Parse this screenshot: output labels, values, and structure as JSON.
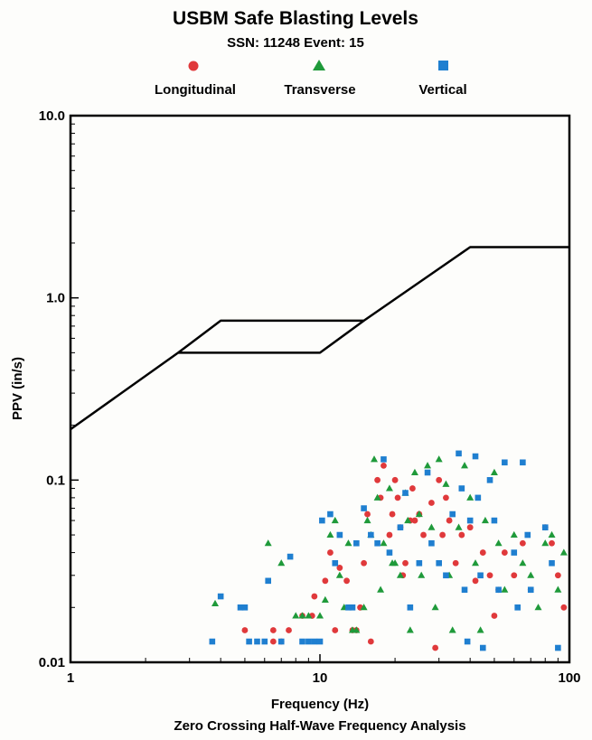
{
  "chart_data": {
    "type": "scatter",
    "title": "USBM Safe Blasting Levels",
    "subtitle": "SSN: 11248  Event: 15",
    "xlabel": "Frequency (Hz)",
    "xlabel2": "Zero Crossing Half-Wave Frequency Analysis",
    "ylabel": "PPV (in/s)",
    "x_scale": "log",
    "y_scale": "log",
    "xlim": [
      1,
      100
    ],
    "ylim": [
      0.01,
      10.0
    ],
    "x_ticks": [
      {
        "value": 1,
        "label": "1"
      },
      {
        "value": 10,
        "label": "10"
      },
      {
        "value": 100,
        "label": "100"
      }
    ],
    "y_ticks": [
      {
        "value": 0.01,
        "label": "0.01"
      },
      {
        "value": 0.1,
        "label": "0.1"
      },
      {
        "value": 1.0,
        "label": "1.0"
      },
      {
        "value": 10.0,
        "label": "10.0"
      }
    ],
    "grid": false,
    "legend_position": "top-center",
    "limit_lines": [
      {
        "points": [
          [
            1,
            0.19
          ],
          [
            2.7,
            0.5
          ],
          [
            4,
            0.75
          ],
          [
            15,
            0.75
          ],
          [
            40,
            1.9
          ],
          [
            100,
            1.9
          ]
        ]
      },
      {
        "points": [
          [
            2.7,
            0.5
          ],
          [
            10,
            0.5
          ],
          [
            15,
            0.75
          ]
        ]
      }
    ],
    "series": [
      {
        "name": "Longitudinal",
        "marker": "circle",
        "color": "#e0393b",
        "points": [
          [
            6.5,
            0.013
          ],
          [
            7,
            0.013
          ],
          [
            5,
            0.015
          ],
          [
            6.5,
            0.015
          ],
          [
            7.5,
            0.015
          ],
          [
            8.5,
            0.018
          ],
          [
            9.3,
            0.018
          ],
          [
            9.5,
            0.023
          ],
          [
            10.5,
            0.028
          ],
          [
            11,
            0.04
          ],
          [
            11.5,
            0.015
          ],
          [
            12,
            0.033
          ],
          [
            12.8,
            0.028
          ],
          [
            13.5,
            0.015
          ],
          [
            14,
            0.015
          ],
          [
            14.5,
            0.02
          ],
          [
            15,
            0.035
          ],
          [
            15.5,
            0.065
          ],
          [
            16,
            0.013
          ],
          [
            17,
            0.1
          ],
          [
            17.5,
            0.08
          ],
          [
            18,
            0.12
          ],
          [
            19,
            0.05
          ],
          [
            19.5,
            0.065
          ],
          [
            20,
            0.1
          ],
          [
            20.5,
            0.08
          ],
          [
            21,
            0.055
          ],
          [
            21.5,
            0.03
          ],
          [
            22,
            0.035
          ],
          [
            23,
            0.06
          ],
          [
            23.5,
            0.09
          ],
          [
            24,
            0.06
          ],
          [
            25,
            0.065
          ],
          [
            26,
            0.05
          ],
          [
            28,
            0.075
          ],
          [
            29,
            0.012
          ],
          [
            30,
            0.1
          ],
          [
            31,
            0.05
          ],
          [
            32,
            0.08
          ],
          [
            33,
            0.06
          ],
          [
            35,
            0.035
          ],
          [
            37,
            0.05
          ],
          [
            40,
            0.055
          ],
          [
            42,
            0.028
          ],
          [
            45,
            0.04
          ],
          [
            48,
            0.03
          ],
          [
            50,
            0.018
          ],
          [
            52,
            0.025
          ],
          [
            55,
            0.04
          ],
          [
            60,
            0.03
          ],
          [
            65,
            0.045
          ],
          [
            70,
            0.025
          ],
          [
            80,
            0.055
          ],
          [
            85,
            0.045
          ],
          [
            90,
            0.03
          ],
          [
            95,
            0.02
          ]
        ]
      },
      {
        "name": "Transverse",
        "marker": "triangle",
        "color": "#1f9a3a",
        "points": [
          [
            3.8,
            0.021
          ],
          [
            6.2,
            0.045
          ],
          [
            7,
            0.035
          ],
          [
            8,
            0.018
          ],
          [
            8.5,
            0.018
          ],
          [
            9,
            0.018
          ],
          [
            10,
            0.018
          ],
          [
            10.5,
            0.022
          ],
          [
            11,
            0.05
          ],
          [
            11.5,
            0.06
          ],
          [
            12,
            0.03
          ],
          [
            12.5,
            0.02
          ],
          [
            13,
            0.045
          ],
          [
            13.5,
            0.015
          ],
          [
            14,
            0.015
          ],
          [
            15,
            0.02
          ],
          [
            15.5,
            0.06
          ],
          [
            16,
            0.05
          ],
          [
            16.5,
            0.13
          ],
          [
            17,
            0.08
          ],
          [
            17.5,
            0.025
          ],
          [
            18,
            0.045
          ],
          [
            19,
            0.09
          ],
          [
            19.5,
            0.035
          ],
          [
            20,
            0.035
          ],
          [
            21,
            0.03
          ],
          [
            22,
            0.085
          ],
          [
            22.5,
            0.06
          ],
          [
            23,
            0.015
          ],
          [
            24,
            0.11
          ],
          [
            25,
            0.065
          ],
          [
            25.5,
            0.03
          ],
          [
            27,
            0.12
          ],
          [
            28,
            0.055
          ],
          [
            29,
            0.02
          ],
          [
            30,
            0.13
          ],
          [
            32,
            0.095
          ],
          [
            33,
            0.03
          ],
          [
            34,
            0.015
          ],
          [
            36,
            0.055
          ],
          [
            38,
            0.12
          ],
          [
            40,
            0.08
          ],
          [
            42,
            0.035
          ],
          [
            44,
            0.015
          ],
          [
            46,
            0.06
          ],
          [
            50,
            0.11
          ],
          [
            52,
            0.045
          ],
          [
            55,
            0.025
          ],
          [
            60,
            0.05
          ],
          [
            65,
            0.035
          ],
          [
            70,
            0.03
          ],
          [
            75,
            0.02
          ],
          [
            80,
            0.045
          ],
          [
            85,
            0.05
          ],
          [
            90,
            0.025
          ],
          [
            95,
            0.04
          ]
        ]
      },
      {
        "name": "Vertical",
        "marker": "square",
        "color": "#1f7fd0",
        "points": [
          [
            3.7,
            0.013
          ],
          [
            4,
            0.023
          ],
          [
            4.8,
            0.02
          ],
          [
            5,
            0.02
          ],
          [
            5.2,
            0.013
          ],
          [
            5.6,
            0.013
          ],
          [
            6,
            0.013
          ],
          [
            6.2,
            0.028
          ],
          [
            7,
            0.013
          ],
          [
            7.6,
            0.038
          ],
          [
            8.5,
            0.013
          ],
          [
            9,
            0.013
          ],
          [
            9.5,
            0.013
          ],
          [
            10,
            0.013
          ],
          [
            10.2,
            0.06
          ],
          [
            11,
            0.065
          ],
          [
            11.5,
            0.035
          ],
          [
            12,
            0.05
          ],
          [
            13,
            0.02
          ],
          [
            13.5,
            0.02
          ],
          [
            14,
            0.045
          ],
          [
            15,
            0.07
          ],
          [
            16,
            0.05
          ],
          [
            17,
            0.045
          ],
          [
            18,
            0.13
          ],
          [
            19,
            0.04
          ],
          [
            21,
            0.055
          ],
          [
            22,
            0.085
          ],
          [
            23,
            0.02
          ],
          [
            25,
            0.035
          ],
          [
            27,
            0.11
          ],
          [
            28,
            0.045
          ],
          [
            30,
            0.035
          ],
          [
            32,
            0.03
          ],
          [
            34,
            0.065
          ],
          [
            36,
            0.14
          ],
          [
            37,
            0.09
          ],
          [
            38,
            0.025
          ],
          [
            39,
            0.013
          ],
          [
            40,
            0.06
          ],
          [
            42,
            0.135
          ],
          [
            43,
            0.08
          ],
          [
            44,
            0.03
          ],
          [
            45,
            0.012
          ],
          [
            48,
            0.1
          ],
          [
            50,
            0.06
          ],
          [
            52,
            0.025
          ],
          [
            55,
            0.125
          ],
          [
            60,
            0.04
          ],
          [
            62,
            0.02
          ],
          [
            65,
            0.125
          ],
          [
            68,
            0.05
          ],
          [
            70,
            0.025
          ],
          [
            80,
            0.055
          ],
          [
            85,
            0.035
          ],
          [
            90,
            0.012
          ]
        ]
      }
    ]
  }
}
